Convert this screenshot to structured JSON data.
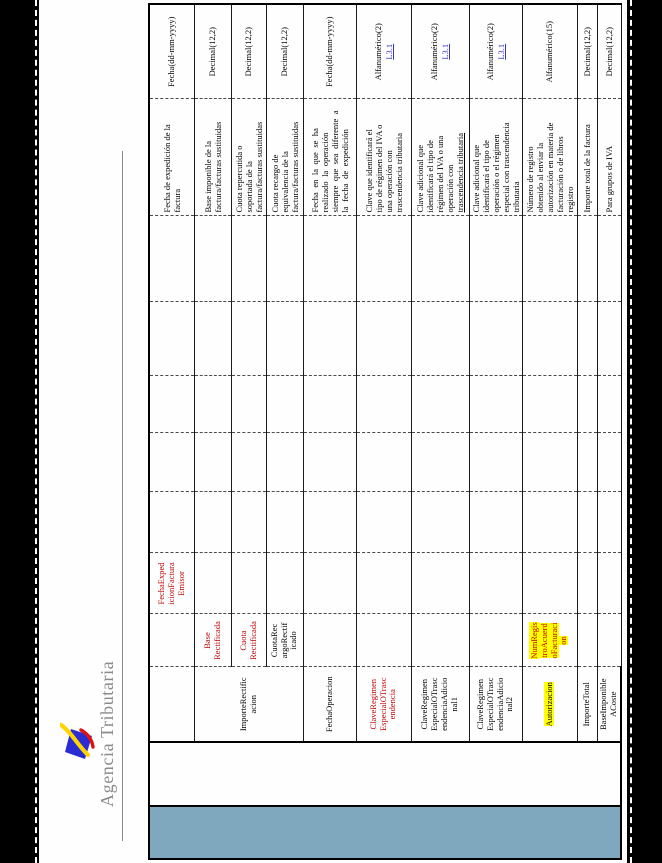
{
  "brand": {
    "name": "Agencia Tributaria"
  },
  "colors": {
    "accent_blue_column": "#7fa8bf",
    "field_red": "#c00000",
    "highlight_yellow": "#ffff00",
    "link_blue": "#3434cc",
    "brand_gray": "#8b8b8b",
    "logo_blue": "#2b2bd4",
    "logo_yellow": "#ffd400",
    "logo_red": "#e01010"
  },
  "table": {
    "rows": [
      {
        "name": "FechaExped\nicionFactura\nEmisor",
        "level": 3,
        "name_red": true,
        "desc": "Fecha de expedición de la\nfactura",
        "type": "Fecha(dd-mm-yyyy)"
      },
      {
        "name": "Base\nRectificada",
        "level": 2,
        "name_red": true,
        "parent_name": "ImporteRectific\nacion",
        "parent_span": 3,
        "desc": "Base imponible de la\nfactura/facturas sustituidas",
        "type": "Decimal(12,2)"
      },
      {
        "name": "Cuota\nRectificada",
        "level": 2,
        "name_red": true,
        "desc": "Cuota repercutida o\nsoportada de la\nfactura/facturas sustituidas",
        "type": "Decimal(12,2)"
      },
      {
        "name": "CuotaRec\nargoRectif\nicado",
        "level": 2,
        "desc": "Cuota recargo de\nequivalencia de la\nfactura/facturas sustituidas",
        "type": "Decimal(12,2)"
      },
      {
        "name": "FechaOperacion",
        "level": 1,
        "justify": true,
        "desc": "Fecha en la que se ha\nrealizado la operación\nsiempre que sea diferente a\nla fecha de expedición",
        "type": "Fecha(dd-mm-yyyy)"
      },
      {
        "name": "ClaveRegimen\nEspecialOTrasc\nendencia",
        "level": 1,
        "name_red": true,
        "desc": "Clave que identificará el\ntipo de régimen del IVA o\nuna operación con\ntrascendencia tributaria",
        "type": "Alfanumérico(2)",
        "link": "L3.1"
      },
      {
        "name": "ClaveRegimen\nEspecialOTrasc\nendenciaAdicio\nnal1",
        "level": 1,
        "desc": "Clave adicional que\nidentificará el tipo de\nrégimen del IVA o una\noperación con\ntrascendencia tributaria",
        "underline_phrase": "trascendencia tributaria",
        "type": "Alfanumérico(2)",
        "link": "L3.1"
      },
      {
        "name": "ClaveRegimen\nEspecialOTrasc\nendenciaAdicio\nnal2",
        "level": 1,
        "desc": "Clave adicional que\nidentificará el tipo de\noperación o el régimen\nespecial con trascendencia\ntributaria",
        "type": "Alfanumérico(2)",
        "link": "L3.1"
      },
      {
        "name": "Autorizacion",
        "level": 1,
        "name_hl": true,
        "subname": {
          "text": "NumRegis\ntroAcuerd\noFacturaci\non",
          "red": true,
          "hl": true
        },
        "desc": "Número de registro\nobtenido al enviar la\nautorización en materia de\nfacturación o de libros\nregistro",
        "type": "Alfanumérico(15)"
      },
      {
        "name": "ImporteTotal",
        "level": 1,
        "desc": "Importe total de la factura",
        "type": "Decimal(12,2)"
      },
      {
        "name": "BaseImponible\nACoste",
        "level": 1,
        "last_thick": true,
        "desc": "Para grupos de IVA",
        "type": "Decimal(12,2)"
      }
    ]
  }
}
